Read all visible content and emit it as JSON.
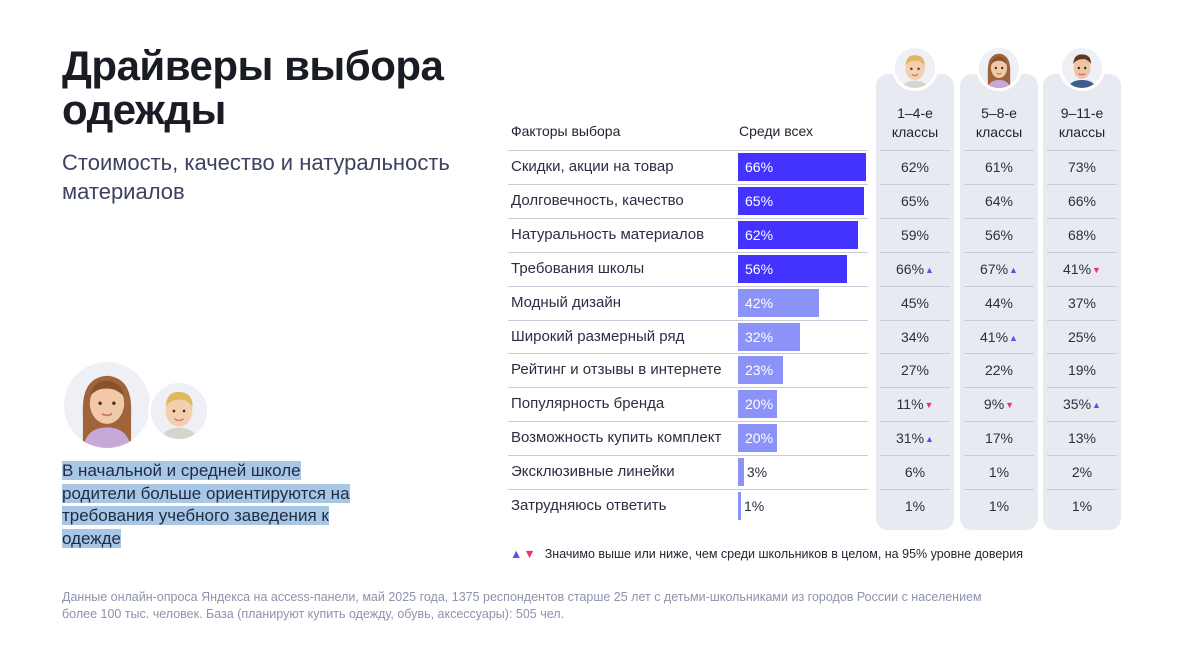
{
  "title": "Драйверы выбора одежды",
  "subtitle": "Стоимость, качество и натуральность материалов",
  "note": "В начальной и средней школе родители больше ориентируются на требования учебного заведения к одежде",
  "legend": {
    "text": "Значимо выше или ниже, чем среди школьников в целом, на 95% уровне доверия",
    "up_symbol": "▲",
    "down_symbol": "▼"
  },
  "footer": "Данные онлайн-опроса Яндекса на access-панели, май 2025 года, 1375 респондентов старше 25 лет с детьми-школьниками из городов России с населением более 100 тыс. человек. База (планируют купить одежду, обувь, аксессуары): 505 чел.",
  "colors": {
    "bar_dark": "#4433ff",
    "bar_light": "#8b93f8",
    "up": "#5a4ff2",
    "down": "#f0307a",
    "column_bg": "#e8eaf2",
    "note_highlight": "#a7c7e4"
  },
  "chart_data": {
    "type": "bar",
    "header_factor": "Факторы выбора",
    "header_all": "Среди всех",
    "columns": [
      {
        "label": "1–4-е классы",
        "avatar": "boy-young-avatar"
      },
      {
        "label": "5–8-е классы",
        "avatar": "girl-avatar"
      },
      {
        "label": "9–11-е классы",
        "avatar": "teen-boy-avatar"
      }
    ],
    "rows": [
      {
        "factor": "Скидки, акции на товар",
        "all": 66,
        "groups": [
          {
            "v": 62,
            "sig": ""
          },
          {
            "v": 61,
            "sig": ""
          },
          {
            "v": 73,
            "sig": ""
          }
        ]
      },
      {
        "factor": "Долговечность, качество",
        "all": 65,
        "groups": [
          {
            "v": 65,
            "sig": ""
          },
          {
            "v": 64,
            "sig": ""
          },
          {
            "v": 66,
            "sig": ""
          }
        ]
      },
      {
        "factor": "Натуральность материалов",
        "all": 62,
        "groups": [
          {
            "v": 59,
            "sig": ""
          },
          {
            "v": 56,
            "sig": ""
          },
          {
            "v": 68,
            "sig": ""
          }
        ]
      },
      {
        "factor": "Требования школы",
        "all": 56,
        "groups": [
          {
            "v": 66,
            "sig": "up"
          },
          {
            "v": 67,
            "sig": "up"
          },
          {
            "v": 41,
            "sig": "down"
          }
        ]
      },
      {
        "factor": "Модный дизайн",
        "all": 42,
        "groups": [
          {
            "v": 45,
            "sig": ""
          },
          {
            "v": 44,
            "sig": ""
          },
          {
            "v": 37,
            "sig": ""
          }
        ]
      },
      {
        "factor": "Широкий размерный ряд",
        "all": 32,
        "groups": [
          {
            "v": 34,
            "sig": ""
          },
          {
            "v": 41,
            "sig": "up"
          },
          {
            "v": 25,
            "sig": ""
          }
        ]
      },
      {
        "factor": "Рейтинг и отзывы в интернете",
        "all": 23,
        "groups": [
          {
            "v": 27,
            "sig": ""
          },
          {
            "v": 22,
            "sig": ""
          },
          {
            "v": 19,
            "sig": ""
          }
        ]
      },
      {
        "factor": "Популярность бренда",
        "all": 20,
        "groups": [
          {
            "v": 11,
            "sig": "down"
          },
          {
            "v": 9,
            "sig": "down"
          },
          {
            "v": 35,
            "sig": "up"
          }
        ]
      },
      {
        "factor": "Возможность купить комплект",
        "all": 20,
        "groups": [
          {
            "v": 31,
            "sig": "up"
          },
          {
            "v": 17,
            "sig": ""
          },
          {
            "v": 13,
            "sig": ""
          }
        ]
      },
      {
        "factor": "Эксклюзивные линейки",
        "all": 3,
        "groups": [
          {
            "v": 6,
            "sig": ""
          },
          {
            "v": 1,
            "sig": ""
          },
          {
            "v": 2,
            "sig": ""
          }
        ]
      },
      {
        "factor": "Затрудняюсь ответить",
        "all": 1,
        "groups": [
          {
            "v": 1,
            "sig": ""
          },
          {
            "v": 1,
            "sig": ""
          },
          {
            "v": 1,
            "sig": ""
          }
        ]
      }
    ],
    "unit": "%",
    "xlim": [
      0,
      66
    ]
  }
}
